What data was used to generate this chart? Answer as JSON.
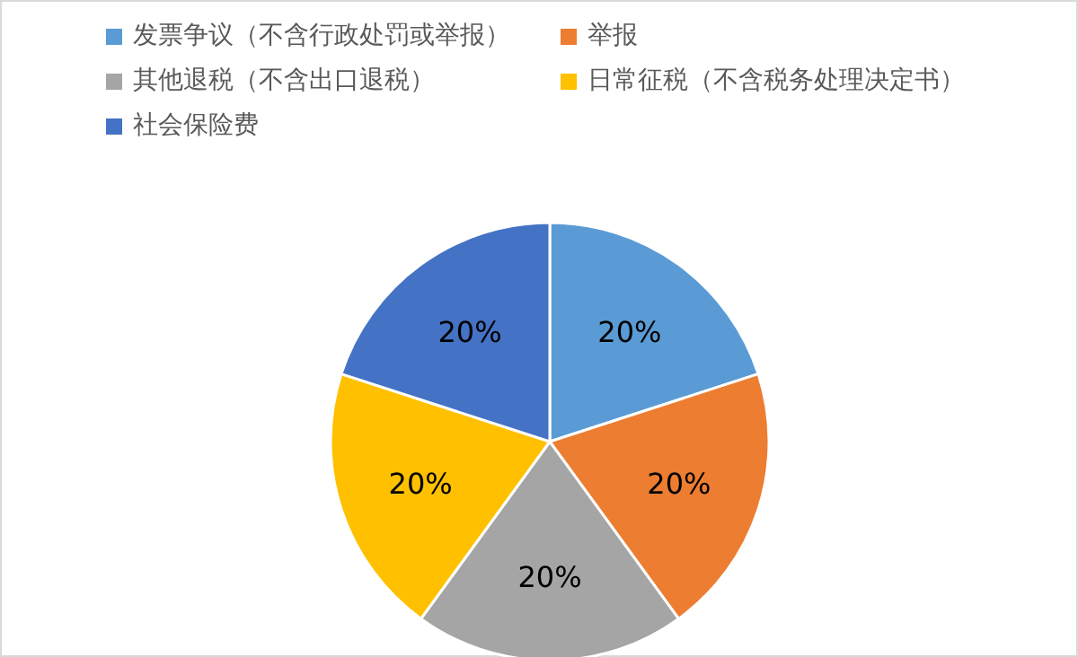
{
  "chart_data": {
    "type": "pie",
    "categories": [
      "发票争议（不含行政处罚或举报）",
      "举报",
      "其他退税（不含出口退税）",
      "日常征税（不含税务处理决定书）",
      "社会保险费"
    ],
    "values": [
      20,
      20,
      20,
      20,
      20
    ],
    "value_labels": [
      "20%",
      "20%",
      "20%",
      "20%",
      "20%"
    ],
    "colors": [
      "#5b9bd5",
      "#ed7d31",
      "#a5a5a5",
      "#ffc000",
      "#4472c4"
    ],
    "legend": "top"
  }
}
